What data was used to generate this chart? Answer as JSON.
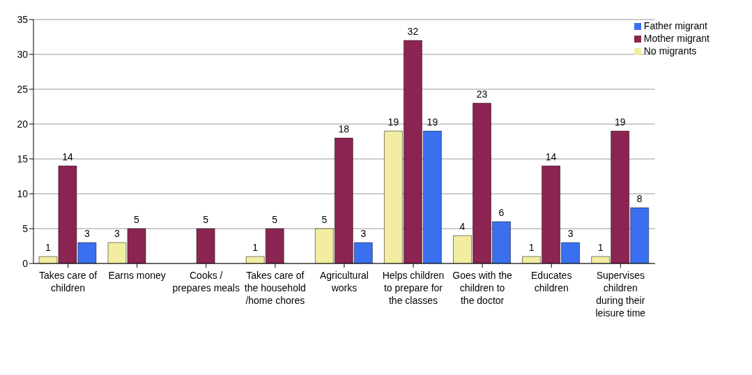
{
  "chart_data": {
    "type": "bar",
    "categories": [
      "Takes care of children",
      "Earns money",
      "Cooks / prepares meals",
      "Takes care of the household /home chores",
      "Agricultural works",
      "Helps children to prepare for the classes",
      "Goes with the children to the doctor",
      "Educates children",
      "Supervises children during their leisure time"
    ],
    "series": [
      {
        "name": "No migrants",
        "color": "#f2eda0",
        "values": [
          1,
          3,
          null,
          1,
          5,
          19,
          4,
          1,
          1
        ]
      },
      {
        "name": "Mother migrant",
        "color": "#8c2452",
        "values": [
          14,
          5,
          5,
          5,
          18,
          32,
          23,
          14,
          19
        ]
      },
      {
        "name": "Father migrant",
        "color": "#3a70f0",
        "values": [
          3,
          null,
          null,
          null,
          3,
          19,
          6,
          3,
          8
        ]
      }
    ],
    "ylim": [
      0,
      35
    ],
    "yticks": [
      0,
      5,
      10,
      15,
      20,
      25,
      30,
      35
    ],
    "grid": "y",
    "legend": "top right",
    "data_labels": true
  }
}
